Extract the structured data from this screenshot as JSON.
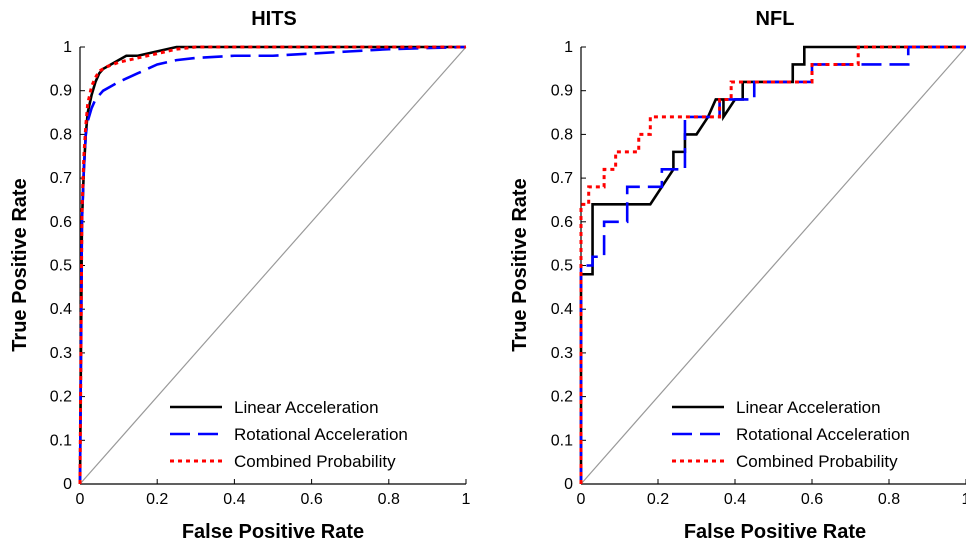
{
  "chart_data": [
    {
      "type": "line",
      "title": "HITS",
      "xlabel": "False Positive Rate",
      "ylabel": "True Positive Rate",
      "xlim": [
        0,
        1
      ],
      "ylim": [
        0,
        1
      ],
      "x_ticks": [
        "0",
        "0.2",
        "0.4",
        "0.6",
        "0.8",
        "1"
      ],
      "y_ticks": [
        "0",
        "0.1",
        "0.2",
        "0.3",
        "0.4",
        "0.5",
        "0.6",
        "0.7",
        "0.8",
        "0.9",
        "1"
      ],
      "grid": false,
      "legend_position": "bottom-right",
      "diagonal_reference": true,
      "series": [
        {
          "name": "Linear Acceleration",
          "color": "#000000",
          "style": "solid",
          "x": [
            0,
            0.005,
            0.01,
            0.015,
            0.02,
            0.03,
            0.04,
            0.05,
            0.06,
            0.08,
            0.1,
            0.12,
            0.15,
            0.2,
            0.25,
            0.3,
            0.5,
            0.7,
            1
          ],
          "y": [
            0,
            0.6,
            0.72,
            0.8,
            0.85,
            0.89,
            0.92,
            0.94,
            0.95,
            0.96,
            0.97,
            0.98,
            0.98,
            0.99,
            1,
            1,
            1,
            1,
            1
          ]
        },
        {
          "name": "Rotational Acceleration",
          "color": "#0000ff",
          "style": "dashed",
          "x": [
            0,
            0.005,
            0.01,
            0.015,
            0.02,
            0.03,
            0.04,
            0.06,
            0.08,
            0.1,
            0.15,
            0.2,
            0.25,
            0.3,
            0.4,
            0.5,
            0.6,
            0.7,
            0.8,
            1
          ],
          "y": [
            0,
            0.6,
            0.72,
            0.8,
            0.83,
            0.86,
            0.88,
            0.9,
            0.91,
            0.92,
            0.94,
            0.96,
            0.97,
            0.975,
            0.98,
            0.98,
            0.985,
            0.99,
            0.995,
            1
          ]
        },
        {
          "name": "Combined Probability",
          "color": "#ff0000",
          "style": "dotted",
          "x": [
            0,
            0.005,
            0.01,
            0.015,
            0.02,
            0.03,
            0.04,
            0.05,
            0.07,
            0.1,
            0.15,
            0.2,
            0.25,
            0.3,
            0.5,
            0.7,
            1
          ],
          "y": [
            0,
            0.62,
            0.75,
            0.82,
            0.87,
            0.91,
            0.93,
            0.945,
            0.955,
            0.965,
            0.975,
            0.985,
            0.995,
            1,
            1,
            1,
            1
          ]
        }
      ]
    },
    {
      "type": "line",
      "title": "NFL",
      "xlabel": "False Positive Rate",
      "ylabel": "True Positive Rate",
      "xlim": [
        0,
        1
      ],
      "ylim": [
        0,
        1
      ],
      "x_ticks": [
        "0",
        "0.2",
        "0.4",
        "0.6",
        "0.8",
        "1"
      ],
      "y_ticks": [
        "0",
        "0.1",
        "0.2",
        "0.3",
        "0.4",
        "0.5",
        "0.6",
        "0.7",
        "0.8",
        "0.9",
        "1"
      ],
      "grid": false,
      "legend_position": "bottom-right",
      "diagonal_reference": true,
      "series": [
        {
          "name": "Linear Acceleration",
          "color": "#000000",
          "style": "solid",
          "x": [
            0,
            0,
            0.03,
            0.03,
            0.18,
            0.21,
            0.24,
            0.24,
            0.27,
            0.27,
            0.3,
            0.3,
            0.33,
            0.35,
            0.37,
            0.37,
            0.4,
            0.42,
            0.42,
            0.55,
            0.55,
            0.57,
            0.58,
            0.58,
            1
          ],
          "y": [
            0,
            0.48,
            0.48,
            0.64,
            0.64,
            0.68,
            0.72,
            0.76,
            0.76,
            0.8,
            0.8,
            0.8,
            0.84,
            0.88,
            0.88,
            0.84,
            0.88,
            0.88,
            0.92,
            0.92,
            0.96,
            0.96,
            0.96,
            1,
            1
          ]
        },
        {
          "name": "Rotational Acceleration",
          "color": "#0000ff",
          "style": "dashed",
          "x": [
            0,
            0,
            0.03,
            0.03,
            0.06,
            0.06,
            0.12,
            0.12,
            0.21,
            0.21,
            0.24,
            0.27,
            0.27,
            0.36,
            0.36,
            0.45,
            0.45,
            0.52,
            0.52,
            0.6,
            0.6,
            0.85,
            0.85,
            1
          ],
          "y": [
            0,
            0.5,
            0.5,
            0.52,
            0.52,
            0.6,
            0.6,
            0.68,
            0.68,
            0.72,
            0.72,
            0.72,
            0.84,
            0.84,
            0.88,
            0.88,
            0.92,
            0.92,
            0.92,
            0.92,
            0.96,
            0.96,
            1,
            1
          ]
        },
        {
          "name": "Combined Probability",
          "color": "#ff0000",
          "style": "dotted",
          "x": [
            0,
            0,
            0.02,
            0.02,
            0.06,
            0.06,
            0.09,
            0.09,
            0.15,
            0.15,
            0.18,
            0.18,
            0.36,
            0.36,
            0.39,
            0.39,
            0.6,
            0.6,
            0.72,
            0.72,
            1
          ],
          "y": [
            0,
            0.64,
            0.64,
            0.68,
            0.68,
            0.72,
            0.72,
            0.76,
            0.76,
            0.8,
            0.8,
            0.84,
            0.84,
            0.88,
            0.88,
            0.92,
            0.92,
            0.96,
            0.96,
            1,
            1
          ]
        }
      ]
    }
  ]
}
